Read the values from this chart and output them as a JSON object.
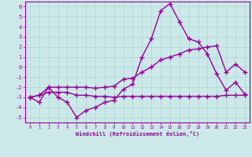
{
  "xlabel": "Windchill (Refroidissement éolien,°C)",
  "x": [
    0,
    1,
    2,
    3,
    4,
    5,
    6,
    7,
    8,
    9,
    10,
    11,
    12,
    13,
    14,
    15,
    16,
    17,
    18,
    19,
    20,
    21,
    22,
    23
  ],
  "line1": [
    -3,
    -3.5,
    -2,
    -3,
    -3.5,
    -5,
    -4.3,
    -4,
    -3.5,
    -3.3,
    -2.2,
    -1.7,
    1.0,
    2.8,
    5.6,
    6.3,
    4.5,
    2.8,
    2.5,
    1.3,
    -0.7,
    -2.3,
    -1.5,
    -2.7
  ],
  "line2": [
    -3,
    -2.8,
    -2,
    -2,
    -2,
    -2,
    -2.0,
    -2.1,
    -2.0,
    -1.9,
    -1.2,
    -1.1,
    -0.5,
    0.0,
    0.7,
    1.0,
    1.3,
    1.7,
    1.8,
    2.0,
    2.1,
    -0.5,
    0.3,
    -0.5
  ],
  "line3": [
    -3,
    -2.8,
    -2.5,
    -2.5,
    -2.5,
    -2.8,
    -2.8,
    -2.9,
    -2.9,
    -3.0,
    -2.9,
    -2.9,
    -2.9,
    -2.9,
    -2.9,
    -2.9,
    -2.9,
    -2.9,
    -2.9,
    -2.9,
    -2.9,
    -2.8,
    -2.8,
    -2.8
  ],
  "color": "#990099",
  "bg_color": "#cce8e8",
  "grid_color": "#b0d8d8",
  "ylim": [
    -5.5,
    6.5
  ],
  "yticks": [
    -5,
    -4,
    -3,
    -2,
    -1,
    0,
    1,
    2,
    3,
    4,
    5,
    6
  ],
  "xticks": [
    0,
    1,
    2,
    3,
    4,
    5,
    6,
    7,
    8,
    9,
    10,
    11,
    12,
    13,
    14,
    15,
    16,
    17,
    18,
    19,
    20,
    21,
    22,
    23
  ],
  "marker": "+",
  "markersize": 4,
  "linewidth": 1.0
}
